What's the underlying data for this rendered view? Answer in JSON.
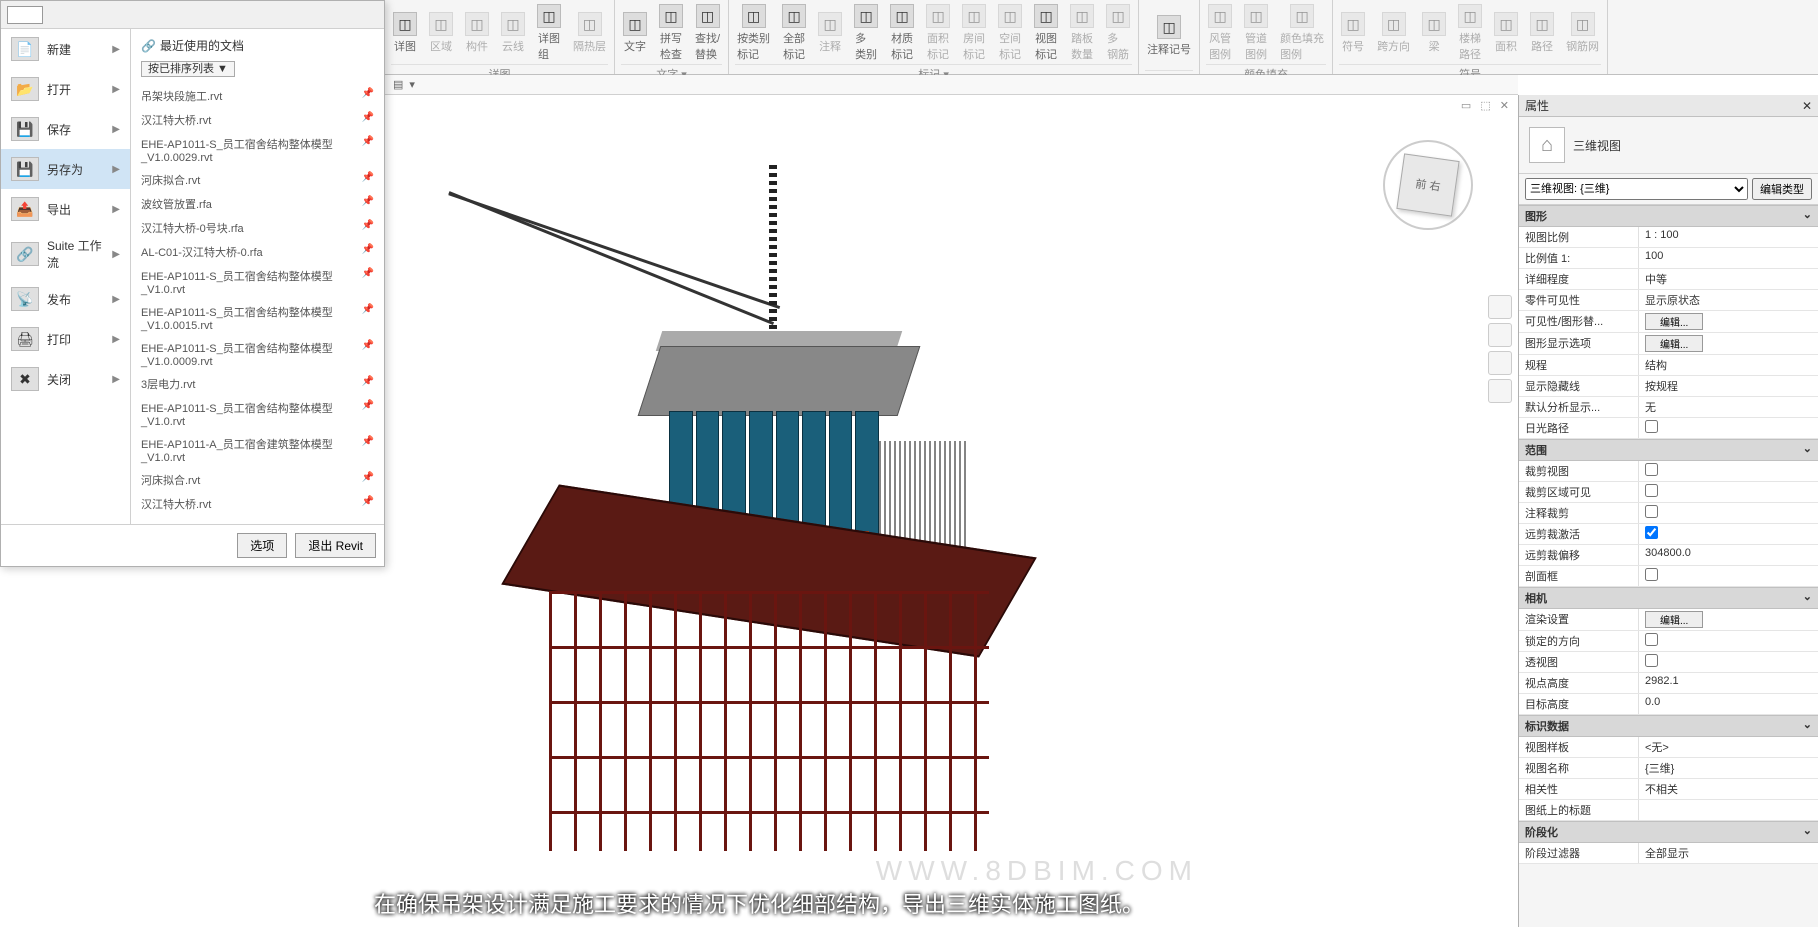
{
  "ribbon": {
    "groups": [
      {
        "label": "详图",
        "buttons": [
          {
            "name": "detail-view",
            "label": "详图"
          },
          {
            "name": "region",
            "label": "区域",
            "dim": true
          },
          {
            "name": "component",
            "label": "构件",
            "dim": true
          },
          {
            "name": "cloud",
            "label": "云线",
            "dim": true
          },
          {
            "name": "detail-group",
            "label": "详图\n组"
          },
          {
            "name": "insulation",
            "label": "隔热层",
            "dim": true
          }
        ]
      },
      {
        "label": "文字 ▾",
        "buttons": [
          {
            "name": "text",
            "label": "文字"
          },
          {
            "name": "spellcheck",
            "label": "拼写\n检查"
          },
          {
            "name": "find-replace",
            "label": "查找/\n替换"
          }
        ]
      },
      {
        "label": "标记 ▾",
        "buttons": [
          {
            "name": "tag-category",
            "label": "按类别\n标记"
          },
          {
            "name": "tag-all",
            "label": "全部\n标记"
          },
          {
            "name": "annotate",
            "label": "注释",
            "dim": true
          },
          {
            "name": "multi-category",
            "label": "多\n类别"
          },
          {
            "name": "material",
            "label": "材质\n标记"
          },
          {
            "name": "area",
            "label": "面积\n标记",
            "dim": true
          },
          {
            "name": "room",
            "label": "房间\n标记",
            "dim": true
          },
          {
            "name": "space",
            "label": "空间\n标记",
            "dim": true
          },
          {
            "name": "view",
            "label": "视图\n标记"
          },
          {
            "name": "tread",
            "label": "踏板\n数量",
            "dim": true
          },
          {
            "name": "more",
            "label": "多\n钢筋",
            "dim": true
          }
        ]
      },
      {
        "label": "",
        "buttons": [
          {
            "name": "keynote",
            "label": "注释记号"
          }
        ]
      },
      {
        "label": "颜色填充",
        "buttons": [
          {
            "name": "duct",
            "label": "风管\n图例",
            "dim": true
          },
          {
            "name": "pipe",
            "label": "管道\n图例",
            "dim": true
          },
          {
            "name": "color-fill",
            "label": "颜色填充\n图例",
            "dim": true
          }
        ]
      },
      {
        "label": "符号",
        "buttons": [
          {
            "name": "symbol",
            "label": "符号",
            "dim": true
          },
          {
            "name": "span",
            "label": "跨方向",
            "dim": true
          },
          {
            "name": "beam-sym",
            "label": "梁",
            "dim": true
          },
          {
            "name": "stair",
            "label": "楼梯\n路径",
            "dim": true
          },
          {
            "name": "area-sym",
            "label": "面积",
            "dim": true
          },
          {
            "name": "path",
            "label": "路径",
            "dim": true
          },
          {
            "name": "rebar",
            "label": "钢筋网",
            "dim": true
          }
        ]
      }
    ]
  },
  "appMenu": {
    "recentDocsTitle": "最近使用的文档",
    "sortLabel": "按已排序列表 ▼",
    "items": [
      {
        "name": "new",
        "label": "新建",
        "icon": "📄"
      },
      {
        "name": "open",
        "label": "打开",
        "icon": "📂"
      },
      {
        "name": "save",
        "label": "保存",
        "icon": "💾"
      },
      {
        "name": "saveas",
        "label": "另存为",
        "icon": "💾",
        "active": true
      },
      {
        "name": "export",
        "label": "导出",
        "icon": "📤"
      },
      {
        "name": "suite",
        "label": "Suite 工作流",
        "icon": "🔗"
      },
      {
        "name": "publish",
        "label": "发布",
        "icon": "📡"
      },
      {
        "name": "print",
        "label": "打印",
        "icon": "🖨"
      },
      {
        "name": "close",
        "label": "关闭",
        "icon": "✖"
      }
    ],
    "recent": [
      "吊架块段施工.rvt",
      "汉江特大桥.rvt",
      "EHE-AP1011-S_员工宿舍结构整体模型_V1.0.0029.rvt",
      "河床拟合.rvt",
      "波纹管放置.rfa",
      "汉江特大桥-0号块.rfa",
      "AL-C01-汉江特大桥-0.rfa",
      "EHE-AP1011-S_员工宿舍结构整体模型_V1.0.rvt",
      "EHE-AP1011-S_员工宿舍结构整体模型_V1.0.0015.rvt",
      "EHE-AP1011-S_员工宿舍结构整体模型_V1.0.0009.rvt",
      "3层电力.rvt",
      "EHE-AP1011-S_员工宿舍结构整体模型_V1.0.rvt",
      "EHE-AP1011-A_员工宿舍建筑整体模型_V1.0.rvt",
      "河床拟合.rvt",
      "汉江特大桥.rvt"
    ],
    "footer": {
      "options": "选项",
      "exit": "退出 Revit"
    }
  },
  "props": {
    "title": "属性",
    "typeName": "三维视图",
    "selector": "三维视图: {三维}",
    "editType": "编辑类型",
    "sections": [
      {
        "title": "图形",
        "rows": [
          {
            "k": "视图比例",
            "v": "1 : 100"
          },
          {
            "k": "比例值 1:",
            "v": "100"
          },
          {
            "k": "详细程度",
            "v": "中等"
          },
          {
            "k": "零件可见性",
            "v": "显示原状态"
          },
          {
            "k": "可见性/图形替...",
            "v": "编辑...",
            "btn": true
          },
          {
            "k": "图形显示选项",
            "v": "编辑...",
            "btn": true
          },
          {
            "k": "规程",
            "v": "结构"
          },
          {
            "k": "显示隐藏线",
            "v": "按规程"
          },
          {
            "k": "默认分析显示...",
            "v": "无"
          },
          {
            "k": "日光路径",
            "v": "",
            "chk": true
          }
        ]
      },
      {
        "title": "范围",
        "rows": [
          {
            "k": "裁剪视图",
            "v": "",
            "chk": true
          },
          {
            "k": "裁剪区域可见",
            "v": "",
            "chk": true
          },
          {
            "k": "注释裁剪",
            "v": "",
            "chk": true
          },
          {
            "k": "远剪裁激活",
            "v": "",
            "chk": true,
            "checked": true
          },
          {
            "k": "远剪裁偏移",
            "v": "304800.0"
          },
          {
            "k": "剖面框",
            "v": "",
            "chk": true
          }
        ]
      },
      {
        "title": "相机",
        "rows": [
          {
            "k": "渲染设置",
            "v": "编辑...",
            "btn": true
          },
          {
            "k": "锁定的方向",
            "v": "",
            "chk": true
          },
          {
            "k": "透视图",
            "v": "",
            "chk": true
          },
          {
            "k": "视点高度",
            "v": "2982.1"
          },
          {
            "k": "目标高度",
            "v": "0.0"
          }
        ]
      },
      {
        "title": "标识数据",
        "rows": [
          {
            "k": "视图样板",
            "v": "<无>"
          },
          {
            "k": "视图名称",
            "v": "{三维}"
          },
          {
            "k": "相关性",
            "v": "不相关"
          },
          {
            "k": "图纸上的标题",
            "v": ""
          }
        ]
      },
      {
        "title": "阶段化",
        "rows": [
          {
            "k": "阶段过滤器",
            "v": "全部显示"
          }
        ]
      }
    ]
  },
  "viewcube": {
    "face": "前  右"
  },
  "subtitle": "在确保吊架设计满足施工要求的情况下优化细部结构，导出三维实体施工图纸。",
  "watermark": "WWW.8DBIM.COM",
  "colors": {
    "platform": "#5a1a14",
    "steel": "#6a1510",
    "tank": "#1a5f7a",
    "roof": "#888888"
  }
}
